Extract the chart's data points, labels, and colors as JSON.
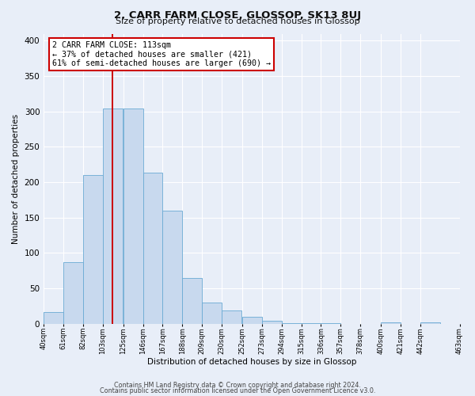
{
  "title": "2, CARR FARM CLOSE, GLOSSOP, SK13 8UJ",
  "subtitle": "Size of property relative to detached houses in Glossop",
  "xlabel": "Distribution of detached houses by size in Glossop",
  "ylabel": "Number of detached properties",
  "bar_color": "#c8d9ee",
  "bar_edge_color": "#6aaad4",
  "background_color": "#e8eef8",
  "fig_background_color": "#e8eef8",
  "grid_color": "#ffffff",
  "vline_x": 113,
  "vline_color": "#cc0000",
  "annotation_text": "2 CARR FARM CLOSE: 113sqm\n← 37% of detached houses are smaller (421)\n61% of semi-detached houses are larger (690) →",
  "annotation_box_color": "#ffffff",
  "annotation_box_edge": "#cc0000",
  "bins_left_edges": [
    40,
    61,
    82,
    103,
    125,
    146,
    167,
    188,
    209,
    230,
    252,
    273,
    294,
    315,
    336,
    357,
    378,
    400,
    421,
    442
  ],
  "bin_width": 21,
  "bar_heights": [
    16,
    87,
    210,
    304,
    304,
    214,
    160,
    65,
    30,
    19,
    10,
    4,
    1,
    1,
    1,
    0,
    0,
    2,
    0,
    2
  ],
  "xtick_labels": [
    "40sqm",
    "61sqm",
    "82sqm",
    "103sqm",
    "125sqm",
    "146sqm",
    "167sqm",
    "188sqm",
    "209sqm",
    "230sqm",
    "252sqm",
    "273sqm",
    "294sqm",
    "315sqm",
    "336sqm",
    "357sqm",
    "378sqm",
    "400sqm",
    "421sqm",
    "442sqm",
    "463sqm"
  ],
  "ylim": [
    0,
    410
  ],
  "xlim": [
    40,
    484
  ],
  "footer_line1": "Contains HM Land Registry data © Crown copyright and database right 2024.",
  "footer_line2": "Contains public sector information licensed under the Open Government Licence v3.0."
}
